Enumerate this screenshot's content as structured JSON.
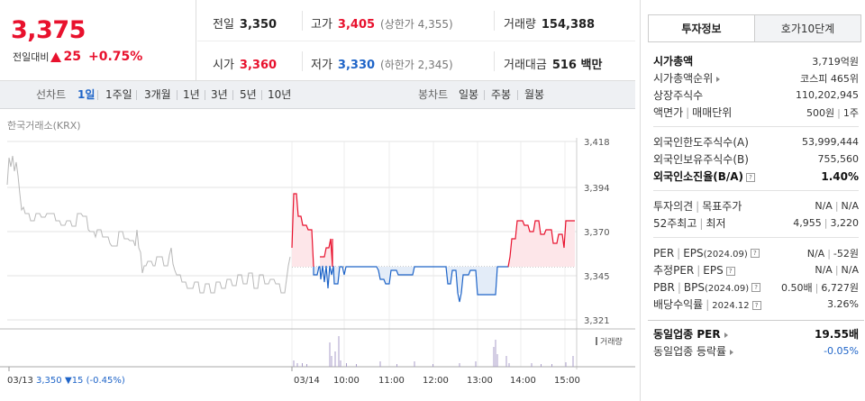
{
  "quote": {
    "price": "3,375",
    "change_label": "전일대비",
    "change_amount": "25",
    "change_pct": "+0.75%",
    "prev_close_label": "전일",
    "prev_close": "3,350",
    "high_label": "고가",
    "high": "3,405",
    "upper_limit": "(상한가 4,355)",
    "volume_label": "거래량",
    "volume": "154,388",
    "open_label": "시가",
    "open": "3,360",
    "low_label": "저가",
    "low": "3,330",
    "lower_limit": "(하한가 2,345)",
    "value_label": "거래대금",
    "value": "516 백만"
  },
  "toolbar": {
    "line_label": "선차트",
    "line_periods": [
      "1일",
      "1주일",
      "3개월",
      "1년",
      "3년",
      "5년",
      "10년"
    ],
    "candle_label": "봉차트",
    "candle_periods": [
      "일봉",
      "주봉",
      "월봉"
    ]
  },
  "chart": {
    "source": "한국거래소(KRX)",
    "y_ticks": [
      "3,418",
      "3,394",
      "3,370",
      "3,345",
      "3,321"
    ],
    "volume_label": "거래량",
    "prev_day": "03/13",
    "prev_day_price": "3,350",
    "prev_day_change": "▼15 (-0.45%)",
    "x_labels": [
      "03/14",
      "10:00",
      "11:00",
      "12:00",
      "13:00",
      "14:00",
      "15:00"
    ]
  },
  "chart_data": {
    "type": "line",
    "y_axis": {
      "ticks": [
        3418,
        3394,
        3370,
        3345,
        3321
      ],
      "ylim": [
        3321,
        3418
      ]
    },
    "baseline": 3350,
    "series": [
      {
        "values": [
          3388,
          3385,
          3375,
          3378,
          3372,
          3366,
          3362,
          3358,
          3355,
          3358,
          3352,
          3348,
          3350,
          3346,
          3344,
          3348,
          3342,
          3340,
          3338,
          3342,
          3340,
          3338,
          3345,
          3348,
          3350
        ]
      },
      {
        "values": [
          3402,
          3385,
          3372,
          3380,
          3352,
          3368,
          3372,
          3350,
          3345,
          3352,
          3340,
          3350,
          3346,
          3338,
          3345,
          3342,
          3350,
          3345,
          3348,
          3346,
          3338,
          3345,
          3350,
          3338,
          3335,
          3340,
          3346,
          3338,
          3348,
          3346,
          3340,
          3350,
          3352,
          3360,
          3368,
          3365,
          3372,
          3366,
          3368,
          3370,
          3372,
          3375
        ]
      }
    ],
    "volume_scale": "relative"
  },
  "tabs": {
    "active": "투자정보",
    "inactive": "호가10단계"
  },
  "info": {
    "market_cap_label": "시가총액",
    "market_cap": "3,719억원",
    "market_cap_rank_label": "시가총액순위",
    "market_cap_rank": "코스피 465위",
    "shares_label": "상장주식수",
    "shares": "110,202,945",
    "par_label": "액면가",
    "par_label2": "매매단위",
    "par": "500원",
    "unit": "1주",
    "foreign_limit_label": "외국인한도주식수(A)",
    "foreign_limit": "53,999,444",
    "foreign_hold_label": "외국인보유주식수(B)",
    "foreign_hold": "755,560",
    "foreign_ratio_label": "외국인소진율(B/A)",
    "foreign_ratio": "1.40%",
    "opinion_label": "투자의견",
    "target_label": "목표주가",
    "opinion": "N/A",
    "target": "N/A",
    "w52_label": "52주최고",
    "w52_low_label": "최저",
    "w52_high": "4,955",
    "w52_low": "3,220",
    "per_label": "PER",
    "eps_label": "EPS",
    "eps_date": "(2024.09)",
    "per": "N/A",
    "eps": "-52원",
    "est_per_label": "추정PER",
    "est_eps_label": "EPS",
    "est_per": "N/A",
    "est_eps": "N/A",
    "pbr_label": "PBR",
    "bps_label": "BPS",
    "bps_date": "(2024.09)",
    "pbr": "0.50배",
    "bps": "6,727원",
    "div_label": "배당수익률",
    "div_date": "2024.12",
    "div": "3.26%",
    "sector_per_label": "동일업종 PER",
    "sector_per": "19.55배",
    "sector_chg_label": "동일업종 등락률",
    "sector_chg": "-0.05%"
  }
}
